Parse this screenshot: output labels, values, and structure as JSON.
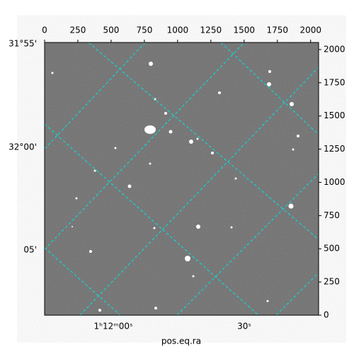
{
  "chart_data": {
    "type": "image",
    "xlabel": "pos.eq.ra",
    "xlim": [
      0,
      2060
    ],
    "xticks": [
      0,
      250,
      500,
      750,
      1000,
      1250,
      1500,
      1750,
      2000
    ],
    "ylim": [
      0,
      2053
    ],
    "yticks": [
      0,
      250,
      500,
      750,
      1000,
      1250,
      1500,
      1750,
      2000
    ],
    "ra_labels": [
      "1ʰ12ᵐ00ˢ",
      "30ˢ"
    ],
    "dec_labels": [
      "31°55'",
      "32°00'",
      "05'"
    ]
  }
}
